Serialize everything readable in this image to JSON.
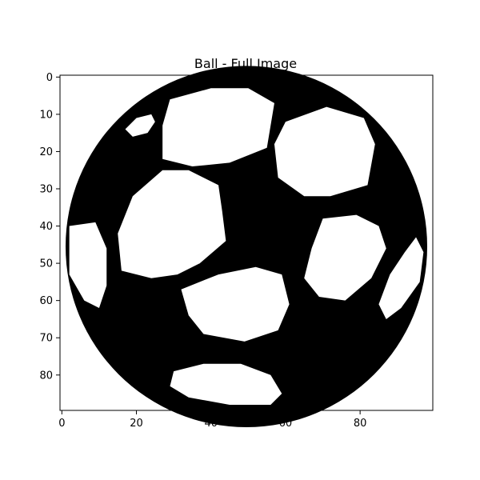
{
  "chart_data": {
    "type": "heatmap",
    "title": "Ball - Full Image",
    "xlabel": "",
    "ylabel": "",
    "image_width": 100,
    "image_height": 90,
    "colormap": "binary",
    "colors": {
      "foreground": "#000000",
      "background": "#ffffff"
    },
    "x_ticks": [
      0,
      20,
      40,
      60,
      80
    ],
    "y_ticks": [
      0,
      10,
      20,
      30,
      40,
      50,
      60,
      70,
      80
    ],
    "xlim": [
      -0.5,
      99.5
    ],
    "ylim": [
      89.5,
      -0.5
    ],
    "y_axis_inverted": true,
    "grid": false,
    "ball": {
      "circle": {
        "cx": 49.5,
        "cy": 45.5,
        "r": 48.5
      },
      "white_patches": [
        {
          "name": "top-center",
          "points": [
            [
              29,
              6
            ],
            [
              40,
              3
            ],
            [
              50,
              3
            ],
            [
              57,
              7
            ],
            [
              55,
              19
            ],
            [
              45,
              23
            ],
            [
              35,
              24
            ],
            [
              27,
              22
            ],
            [
              27,
              13
            ]
          ]
        },
        {
          "name": "top-right",
          "points": [
            [
              60,
              12
            ],
            [
              71,
              8
            ],
            [
              81,
              11
            ],
            [
              84,
              18
            ],
            [
              82,
              29
            ],
            [
              72,
              32
            ],
            [
              65,
              32
            ],
            [
              58,
              27
            ],
            [
              57,
              18
            ]
          ]
        },
        {
          "name": "top-left-sliver",
          "points": [
            [
              17,
              14
            ],
            [
              20,
              11
            ],
            [
              24,
              10
            ],
            [
              25,
              12
            ],
            [
              23,
              15
            ],
            [
              19,
              16
            ]
          ]
        },
        {
          "name": "center-left",
          "points": [
            [
              19,
              32
            ],
            [
              27,
              25
            ],
            [
              34,
              25
            ],
            [
              42,
              29
            ],
            [
              43,
              36
            ],
            [
              44,
              44
            ],
            [
              37,
              50
            ],
            [
              31,
              53
            ],
            [
              24,
              54
            ],
            [
              16,
              52
            ],
            [
              15,
              42
            ]
          ]
        },
        {
          "name": "center-right",
          "points": [
            [
              70,
              38
            ],
            [
              79,
              37
            ],
            [
              85,
              40
            ],
            [
              87,
              46
            ],
            [
              83,
              54
            ],
            [
              76,
              60
            ],
            [
              69,
              59
            ],
            [
              65,
              54
            ],
            [
              67,
              46
            ]
          ]
        },
        {
          "name": "left-edge",
          "points": [
            [
              2,
              40
            ],
            [
              9,
              39
            ],
            [
              12,
              46
            ],
            [
              12,
              56
            ],
            [
              10,
              62
            ],
            [
              6,
              60
            ],
            [
              2,
              53
            ]
          ]
        },
        {
          "name": "right-edge",
          "points": [
            [
              95,
              43
            ],
            [
              97,
              47
            ],
            [
              96,
              55
            ],
            [
              91,
              62
            ],
            [
              87,
              65
            ],
            [
              85,
              61
            ],
            [
              88,
              53
            ],
            [
              92,
              47
            ]
          ]
        },
        {
          "name": "bottom-center",
          "points": [
            [
              32,
              57
            ],
            [
              42,
              53
            ],
            [
              52,
              51
            ],
            [
              59,
              53
            ],
            [
              61,
              61
            ],
            [
              58,
              68
            ],
            [
              49,
              71
            ],
            [
              38,
              69
            ],
            [
              34,
              64
            ]
          ]
        },
        {
          "name": "bottom",
          "points": [
            [
              30,
              79
            ],
            [
              38,
              77
            ],
            [
              48,
              77
            ],
            [
              56,
              80
            ],
            [
              59,
              85
            ],
            [
              56,
              88
            ],
            [
              45,
              88
            ],
            [
              34,
              86
            ],
            [
              29,
              83
            ]
          ]
        }
      ]
    }
  }
}
